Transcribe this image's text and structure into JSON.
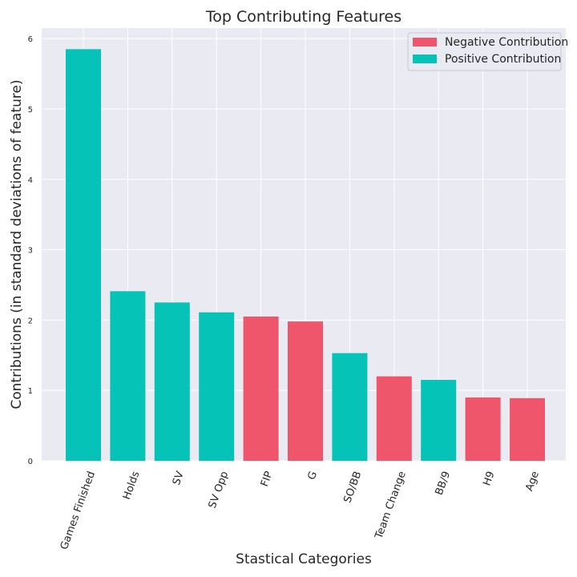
{
  "chart_data": {
    "type": "bar",
    "title": "Top Contributing Features",
    "xlabel": "Stastical Categories",
    "ylabel": "Contributions (in standard deviations of feature)",
    "ylim": [
      0,
      6.15
    ],
    "yticks": [
      "0",
      "1",
      "2",
      "3",
      "4",
      "5",
      "6"
    ],
    "grid": true,
    "legend_position": "top-right",
    "categories": [
      "Games Finished",
      "Holds",
      "SV",
      "SV Opp",
      "FIP",
      "G",
      "SO/BB",
      "Team Change",
      "BB/9",
      "H9",
      "Age"
    ],
    "values": [
      5.85,
      2.41,
      2.25,
      2.11,
      2.05,
      1.98,
      1.53,
      1.2,
      1.15,
      0.9,
      0.89
    ],
    "contribution": [
      "positive",
      "positive",
      "positive",
      "positive",
      "negative",
      "negative",
      "positive",
      "negative",
      "positive",
      "negative",
      "negative"
    ],
    "series": [
      {
        "name": "Negative Contribution",
        "key": "negative",
        "color": "#f0566b"
      },
      {
        "name": "Positive Contribution",
        "key": "positive",
        "color": "#05c3b6"
      }
    ],
    "background_color": "#eaeaf2",
    "grid_color": "#ffffff"
  }
}
